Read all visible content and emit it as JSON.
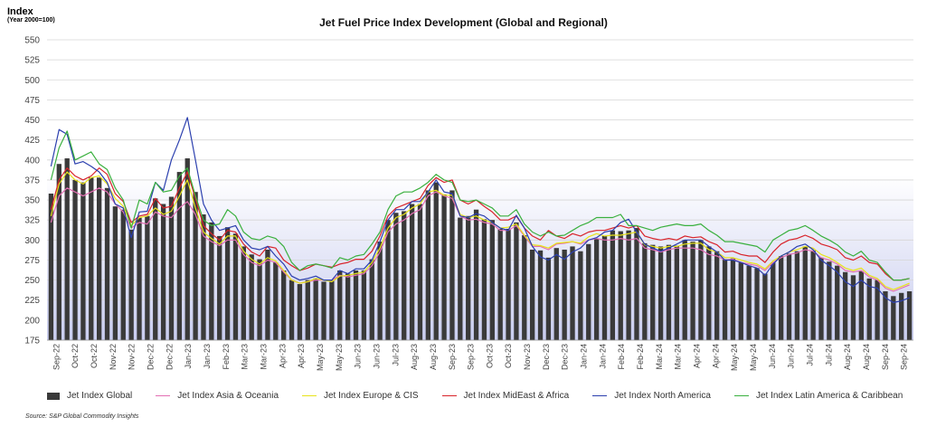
{
  "chart_data": {
    "type": "bar+line",
    "title": "Jet Fuel Price Index Development (Global and Regional)",
    "ylabel": "Index",
    "ylabel_sub": "(Year 2000=100)",
    "ylim": [
      175,
      550
    ],
    "yticks": [
      175,
      200,
      225,
      250,
      275,
      300,
      325,
      350,
      375,
      400,
      425,
      450,
      475,
      500,
      525,
      550
    ],
    "x_tick_labels": [
      "Sep-22",
      "Oct-22",
      "Oct-22",
      "Nov-22",
      "Nov-22",
      "Dec-22",
      "Dec-22",
      "Jan-23",
      "Jan-23",
      "Feb-23",
      "Mar-23",
      "Mar-23",
      "Apr-23",
      "Apr-23",
      "May-23",
      "May-23",
      "Jun-23",
      "Jun-23",
      "Jul-23",
      "Aug-23",
      "Aug-23",
      "Sep-23",
      "Sep-23",
      "Oct-23",
      "Oct-23",
      "Nov-23",
      "Dec-23",
      "Dec-23",
      "Jan-24",
      "Jan-24",
      "Feb-24",
      "Feb-24",
      "Mar-24",
      "Mar-24",
      "Apr-24",
      "Apr-24",
      "May-24",
      "May-24",
      "Jun-24",
      "Jun-24",
      "Jul-24",
      "Jul-24",
      "Aug-24",
      "Aug-24",
      "Sep-24",
      "Sep-24"
    ],
    "grid": true,
    "legend_position": "bottom",
    "bar_series": {
      "name": "Jet Index Global",
      "color": "#3a3a3a",
      "values": [
        358,
        395,
        402,
        375,
        372,
        378,
        378,
        365,
        342,
        338,
        313,
        328,
        330,
        352,
        345,
        354,
        385,
        402,
        360,
        332,
        322,
        305,
        316,
        308,
        292,
        282,
        276,
        288,
        272,
        262,
        250,
        245,
        250,
        252,
        248,
        250,
        262,
        258,
        262,
        262,
        276,
        298,
        325,
        334,
        336,
        345,
        345,
        362,
        372,
        357,
        362,
        328,
        330,
        338,
        326,
        325,
        314,
        314,
        322,
        306,
        288,
        287,
        278,
        290,
        288,
        292,
        286,
        295,
        302,
        305,
        312,
        311,
        312,
        315,
        296,
        294,
        292,
        294,
        293,
        300,
        298,
        300,
        292,
        286,
        276,
        277,
        272,
        268,
        265,
        258,
        272,
        280,
        283,
        286,
        292,
        287,
        278,
        273,
        268,
        260,
        256,
        261,
        252,
        250,
        236,
        230,
        234,
        236
      ]
    },
    "line_series": [
      {
        "name": "Jet Index Asia & Oceania",
        "color": "#e36fb3",
        "values": [
          322,
          355,
          365,
          360,
          355,
          360,
          365,
          360,
          345,
          335,
          315,
          322,
          320,
          335,
          330,
          328,
          340,
          348,
          332,
          305,
          298,
          293,
          300,
          300,
          282,
          272,
          268,
          275,
          272,
          260,
          250,
          246,
          248,
          250,
          250,
          250,
          256,
          254,
          256,
          258,
          268,
          285,
          310,
          320,
          325,
          333,
          338,
          355,
          360,
          355,
          352,
          330,
          325,
          326,
          322,
          320,
          312,
          312,
          318,
          305,
          292,
          292,
          288,
          295,
          296,
          298,
          295,
          300,
          302,
          300,
          300,
          302,
          300,
          302,
          290,
          288,
          285,
          288,
          290,
          290,
          290,
          288,
          282,
          280,
          275,
          276,
          272,
          270,
          268,
          262,
          272,
          278,
          282,
          284,
          288,
          286,
          278,
          275,
          270,
          262,
          260,
          262,
          254,
          250,
          240,
          236,
          240,
          244
        ]
      },
      {
        "name": "Jet Index Europe & CIS",
        "color": "#e8e31a",
        "values": [
          330,
          370,
          385,
          375,
          370,
          378,
          380,
          370,
          352,
          342,
          318,
          328,
          330,
          340,
          332,
          336,
          355,
          375,
          340,
          310,
          302,
          295,
          305,
          305,
          286,
          276,
          270,
          278,
          274,
          262,
          250,
          246,
          248,
          252,
          250,
          248,
          255,
          256,
          258,
          260,
          272,
          290,
          315,
          328,
          332,
          340,
          345,
          360,
          362,
          356,
          356,
          332,
          328,
          330,
          325,
          322,
          315,
          316,
          320,
          306,
          294,
          293,
          290,
          296,
          297,
          298,
          296,
          304,
          308,
          305,
          306,
          306,
          308,
          310,
          294,
          292,
          290,
          292,
          292,
          295,
          296,
          296,
          288,
          285,
          278,
          278,
          275,
          272,
          270,
          264,
          274,
          280,
          285,
          288,
          292,
          290,
          282,
          278,
          272,
          265,
          262,
          265,
          256,
          252,
          242,
          238,
          242,
          246
        ]
      },
      {
        "name": "Jet Index MidEast & Africa",
        "color": "#d8232a",
        "values": [
          338,
          375,
          390,
          380,
          375,
          380,
          390,
          382,
          358,
          348,
          322,
          330,
          332,
          352,
          340,
          342,
          365,
          385,
          352,
          318,
          308,
          300,
          312,
          310,
          295,
          285,
          280,
          292,
          290,
          275,
          268,
          262,
          265,
          270,
          268,
          266,
          270,
          272,
          276,
          276,
          286,
          305,
          330,
          340,
          344,
          348,
          352,
          368,
          378,
          372,
          375,
          350,
          345,
          350,
          342,
          335,
          325,
          325,
          330,
          315,
          305,
          300,
          312,
          305,
          302,
          308,
          305,
          310,
          312,
          312,
          315,
          318,
          315,
          318,
          305,
          302,
          300,
          302,
          300,
          305,
          303,
          304,
          298,
          294,
          285,
          286,
          282,
          280,
          280,
          272,
          285,
          295,
          300,
          302,
          306,
          302,
          295,
          292,
          288,
          278,
          275,
          280,
          272,
          270,
          258,
          250,
          250,
          252
        ]
      },
      {
        "name": "Jet Index North America",
        "color": "#2b3fae",
        "values": [
          392,
          438,
          432,
          395,
          398,
          392,
          385,
          372,
          345,
          340,
          303,
          335,
          336,
          372,
          362,
          400,
          425,
          453,
          400,
          345,
          325,
          312,
          315,
          318,
          300,
          290,
          288,
          292,
          280,
          270,
          255,
          250,
          252,
          255,
          250,
          250,
          262,
          258,
          264,
          264,
          275,
          298,
          325,
          338,
          338,
          348,
          348,
          360,
          375,
          360,
          358,
          330,
          328,
          333,
          330,
          322,
          315,
          312,
          331,
          315,
          292,
          279,
          275,
          282,
          276,
          285,
          290,
          300,
          303,
          310,
          312,
          322,
          326,
          310,
          295,
          290,
          286,
          290,
          295,
          300,
          300,
          300,
          292,
          285,
          275,
          275,
          272,
          268,
          265,
          256,
          270,
          280,
          285,
          292,
          295,
          288,
          275,
          268,
          260,
          248,
          242,
          250,
          242,
          240,
          228,
          222,
          224,
          228
        ]
      },
      {
        "name": "Jet Index Latin America & Caribbean",
        "color": "#3ab03e",
        "values": [
          375,
          415,
          436,
          400,
          405,
          410,
          395,
          388,
          365,
          350,
          315,
          350,
          345,
          372,
          360,
          362,
          380,
          390,
          355,
          325,
          318,
          320,
          338,
          330,
          310,
          302,
          300,
          305,
          302,
          292,
          272,
          262,
          268,
          270,
          268,
          265,
          278,
          275,
          280,
          282,
          295,
          310,
          338,
          355,
          360,
          360,
          365,
          372,
          382,
          375,
          372,
          350,
          348,
          350,
          345,
          340,
          330,
          330,
          338,
          320,
          310,
          305,
          310,
          305,
          306,
          312,
          318,
          322,
          328,
          328,
          328,
          332,
          318,
          318,
          315,
          312,
          316,
          318,
          320,
          318,
          318,
          320,
          312,
          306,
          298,
          298,
          296,
          294,
          292,
          285,
          300,
          306,
          312,
          314,
          318,
          312,
          305,
          300,
          294,
          285,
          280,
          286,
          275,
          272,
          260,
          250,
          250,
          252
        ]
      }
    ],
    "source": "Source:  S&P Global Commodity Insights"
  }
}
